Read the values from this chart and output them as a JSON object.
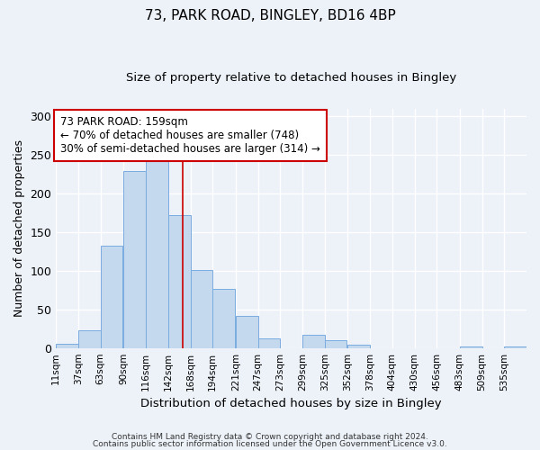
{
  "title1": "73, PARK ROAD, BINGLEY, BD16 4BP",
  "title2": "Size of property relative to detached houses in Bingley",
  "xlabel": "Distribution of detached houses by size in Bingley",
  "ylabel": "Number of detached properties",
  "bins_left": [
    11,
    37,
    63,
    90,
    116,
    142,
    168,
    194,
    221,
    247,
    273,
    299,
    325,
    352,
    378,
    404,
    430,
    456,
    483,
    509,
    535
  ],
  "bin_width": 26,
  "values": [
    5,
    23,
    133,
    229,
    244,
    172,
    101,
    77,
    41,
    13,
    0,
    17,
    10,
    4,
    0,
    0,
    0,
    0,
    2,
    0,
    2
  ],
  "bar_color": "#c5d9ee",
  "bar_edge_color": "#7aace0",
  "bg_color": "#edf2f9",
  "grid_color": "#ffffff",
  "vline_x": 159,
  "vline_color": "#cc0000",
  "annotation_text": "73 PARK ROAD: 159sqm\n← 70% of detached houses are smaller (748)\n30% of semi-detached houses are larger (314) →",
  "annotation_box_color": "#ffffff",
  "annotation_box_edge": "#cc0000",
  "footer1": "Contains HM Land Registry data © Crown copyright and database right 2024.",
  "footer2": "Contains public sector information licensed under the Open Government Licence v3.0.",
  "ylim": [
    0,
    310
  ],
  "yticks": [
    0,
    50,
    100,
    150,
    200,
    250,
    300
  ],
  "title1_fontsize": 11,
  "title2_fontsize": 9.5
}
